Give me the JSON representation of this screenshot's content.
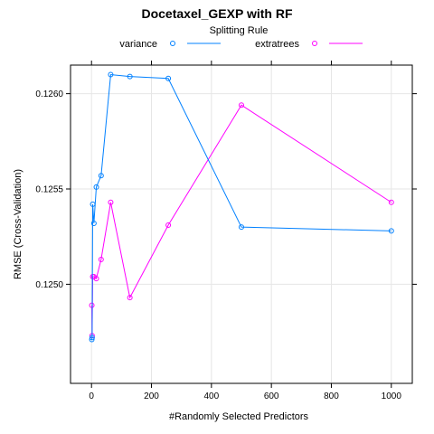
{
  "chart_data": {
    "type": "line",
    "title": "Docetaxel_GEXP with RF",
    "legend": {
      "title": "Splitting Rule",
      "placement": "top"
    },
    "xlabel": "#Randomly Selected Predictors",
    "ylabel": "RMSE (Cross-Validation)",
    "xlim": [
      -70,
      1070
    ],
    "ylim": [
      0.12448,
      0.12615
    ],
    "xticks": [
      0,
      200,
      400,
      600,
      800,
      1000
    ],
    "yticks": [
      0.125,
      0.1255,
      0.126
    ],
    "ytick_labels": [
      "0.1250",
      "0.1255",
      "0.1260"
    ],
    "grid": true,
    "series": [
      {
        "name": "variance",
        "color": "#0080ff",
        "marker": "circle",
        "points": [
          {
            "x": 1,
            "y": 0.12471
          },
          {
            "x": 2,
            "y": 0.12472
          },
          {
            "x": 4,
            "y": 0.12542
          },
          {
            "x": 8,
            "y": 0.12532
          },
          {
            "x": 16,
            "y": 0.12551
          },
          {
            "x": 32,
            "y": 0.12557
          },
          {
            "x": 64,
            "y": 0.1261
          },
          {
            "x": 128,
            "y": 0.12609
          },
          {
            "x": 256,
            "y": 0.12608
          },
          {
            "x": 500,
            "y": 0.1253
          },
          {
            "x": 1000,
            "y": 0.12528
          }
        ]
      },
      {
        "name": "extratrees",
        "color": "#ff00ff",
        "marker": "circle",
        "points": [
          {
            "x": 1,
            "y": 0.12489
          },
          {
            "x": 2,
            "y": 0.12473
          },
          {
            "x": 4,
            "y": 0.12504
          },
          {
            "x": 8,
            "y": 0.12504
          },
          {
            "x": 16,
            "y": 0.12503
          },
          {
            "x": 32,
            "y": 0.12513
          },
          {
            "x": 64,
            "y": 0.12543
          },
          {
            "x": 128,
            "y": 0.12493
          },
          {
            "x": 256,
            "y": 0.12531
          },
          {
            "x": 500,
            "y": 0.12594
          },
          {
            "x": 1000,
            "y": 0.12543
          }
        ]
      }
    ]
  }
}
